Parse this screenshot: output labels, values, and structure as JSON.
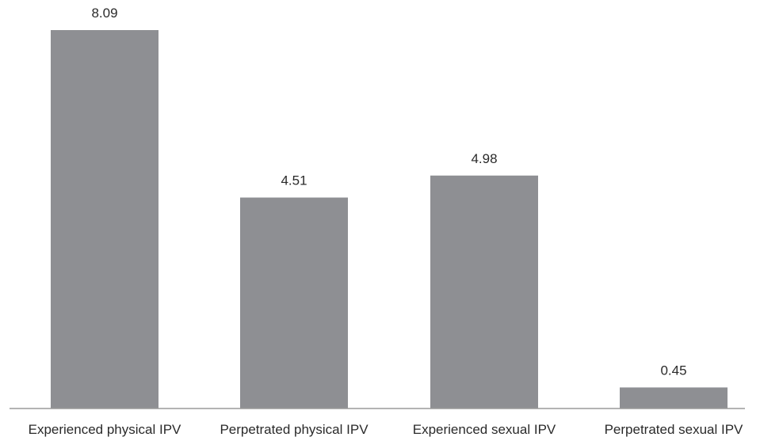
{
  "chart_data": {
    "type": "bar",
    "categories": [
      "Experienced physical IPV",
      "Perpetrated physical IPV",
      "Experienced sexual IPV",
      "Perpetrated sexual IPV"
    ],
    "values": [
      8.09,
      4.51,
      4.98,
      0.45
    ],
    "data_labels": [
      "8.09",
      "4.51",
      "4.98",
      "0.45"
    ],
    "title": "",
    "xlabel": "",
    "ylabel": "",
    "ylim": [
      0,
      8.09
    ],
    "grid": false,
    "legend": "none",
    "bar_color": "#8e8f93"
  }
}
